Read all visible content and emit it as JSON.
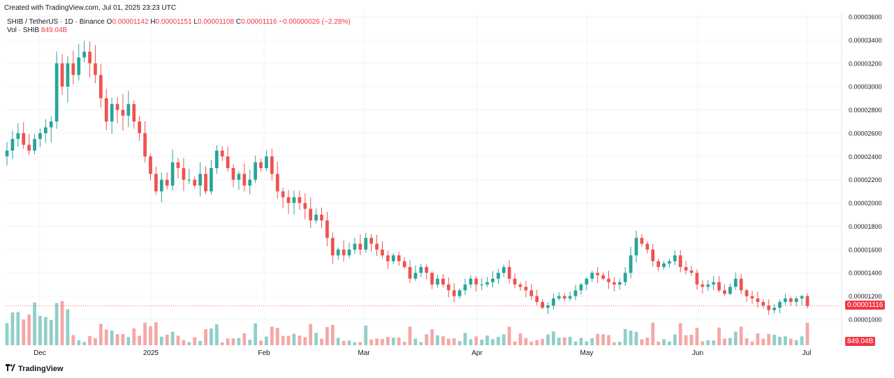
{
  "header": {
    "created": "Created with TradingView.com, Jul 01, 2025 23:23 UTC",
    "symbol": "SHIB / TetherUS · 1D · Binance",
    "o_label": "O",
    "o_value": "0.00001142",
    "h_label": "H",
    "h_value": "0.00001151",
    "l_label": "L",
    "l_value": "0.00001108",
    "c_label": "C",
    "c_value": "0.00001116",
    "change": "−0.00000026 (−2.28%)",
    "vol_label": "Vol · SHIB",
    "vol_value": "849.04B"
  },
  "price_tag": "0.00001116",
  "vol_tag": "849.04B",
  "brand": "TradingView",
  "colors": {
    "up": "#26a69a",
    "down": "#ef5350",
    "up_vol": "#8fcfc9",
    "down_vol": "#f5a7a6",
    "grid": "#f0f3fa",
    "last": "#f23645"
  },
  "chart_data": {
    "type": "candlestick",
    "y_ticks": [
      "0.00003600",
      "0.00003400",
      "0.00003200",
      "0.00003000",
      "0.00002800",
      "0.00002600",
      "0.00002400",
      "0.00002200",
      "0.00002000",
      "0.00001800",
      "0.00001600",
      "0.00001400",
      "0.00001200",
      "0.00001000"
    ],
    "ylim": [
      9.2e-06,
      3.62e-05
    ],
    "x_ticks": [
      "Dec",
      "2025",
      "Feb",
      "Mar",
      "Apr",
      "May",
      "Jun",
      "Jul"
    ],
    "last_close": 1.116e-05,
    "close_series_approx": [
      2.45,
      2.55,
      2.6,
      2.5,
      2.45,
      2.55,
      2.6,
      2.65,
      2.7,
      3.2,
      3.0,
      3.2,
      3.1,
      3.25,
      3.3,
      3.2,
      3.1,
      2.9,
      2.7,
      2.85,
      2.8,
      2.75,
      2.85,
      2.7,
      2.6,
      2.4,
      2.25,
      2.1,
      2.2,
      2.15,
      2.35,
      2.3,
      2.2,
      2.2,
      2.15,
      2.25,
      2.1,
      2.3,
      2.45,
      2.4,
      2.3,
      2.2,
      2.25,
      2.15,
      2.2,
      2.35,
      2.3,
      2.4,
      2.25,
      2.1,
      2.05,
      2.0,
      2.05,
      2.0,
      1.95,
      1.85,
      1.9,
      1.85,
      1.7,
      1.55,
      1.6,
      1.55,
      1.6,
      1.65,
      1.6,
      1.7,
      1.65,
      1.6,
      1.55,
      1.5,
      1.55,
      1.5,
      1.45,
      1.35,
      1.4,
      1.45,
      1.4,
      1.3,
      1.35,
      1.3,
      1.25,
      1.2,
      1.25,
      1.3,
      1.35,
      1.3,
      1.3,
      1.32,
      1.35,
      1.4,
      1.45,
      1.35,
      1.3,
      1.28,
      1.25,
      1.2,
      1.15,
      1.1,
      1.12,
      1.18,
      1.2,
      1.18,
      1.2,
      1.25,
      1.3,
      1.35,
      1.4,
      1.38,
      1.35,
      1.32,
      1.3,
      1.32,
      1.4,
      1.55,
      1.7,
      1.65,
      1.6,
      1.5,
      1.45,
      1.48,
      1.5,
      1.55,
      1.45,
      1.42,
      1.4,
      1.3,
      1.28,
      1.3,
      1.32,
      1.25,
      1.22,
      1.28,
      1.35,
      1.25,
      1.2,
      1.18,
      1.15,
      1.12,
      1.08,
      1.1,
      1.15,
      1.18,
      1.15,
      1.18,
      1.2,
      1.116
    ]
  }
}
